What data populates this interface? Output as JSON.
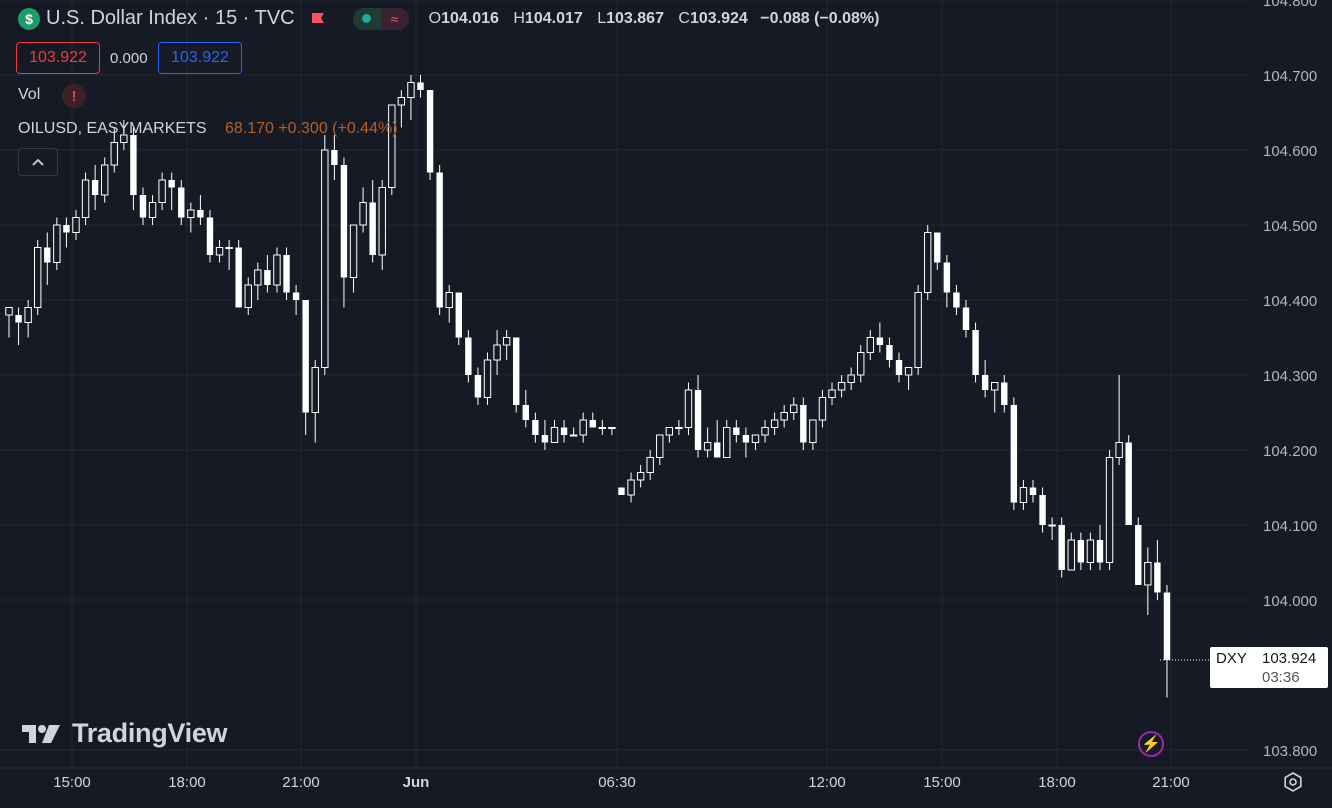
{
  "header": {
    "symbol_icon": "$",
    "title": "U.S. Dollar Index · 15 · TVC",
    "flag_icon": "red-flag-icon",
    "status_icon": "market-status-icon",
    "wave_icon": "≈",
    "ohlc": {
      "o_label": "O",
      "o": "104.016",
      "h_label": "H",
      "h": "104.017",
      "l_label": "L",
      "l": "103.867",
      "c_label": "C",
      "c": "103.924",
      "change": "−0.088 (−0.08%)"
    }
  },
  "quote": {
    "bid": "103.922",
    "spread": "0.000",
    "ask": "103.922"
  },
  "indicators": {
    "vol_label": "Vol",
    "vol_warning_icon": "!",
    "overlay_name": "OILUSD, EASYMARKETS",
    "overlay_value": "68.170 +0.300 (+0.44%)",
    "collapse_icon": "^"
  },
  "logo": {
    "text": "TradingView"
  },
  "price_label": {
    "symbol": "DXY",
    "price": "103.924",
    "countdown": "03:36"
  },
  "colors": {
    "background": "#161a25",
    "candle": "#ffffff",
    "grid": "#232733",
    "text": "#d1d4dc",
    "bid": "#f23645",
    "ask": "#2962ff",
    "overlay": "#b2602a"
  },
  "chart_data": {
    "type": "candlestick",
    "title": "U.S. Dollar Index · 15 · TVC",
    "ylim": [
      103.78,
      104.8
    ],
    "y_ticks": [
      "104.800",
      "104.700",
      "104.600",
      "104.500",
      "104.400",
      "104.300",
      "104.200",
      "104.100",
      "104.000",
      "103.800"
    ],
    "x_ticks": [
      "15:00",
      "18:00",
      "21:00",
      "Jun",
      "06:30",
      "12:00",
      "15:00",
      "18:00",
      "21:00"
    ],
    "grid": true,
    "gap_after_index": 74,
    "candles": [
      [
        104.38,
        104.39,
        104.35,
        104.39
      ],
      [
        104.38,
        104.39,
        104.34,
        104.37
      ],
      [
        104.37,
        104.4,
        104.35,
        104.39
      ],
      [
        104.39,
        104.48,
        104.38,
        104.47
      ],
      [
        104.47,
        104.49,
        104.42,
        104.45
      ],
      [
        104.45,
        104.51,
        104.44,
        104.5
      ],
      [
        104.5,
        104.51,
        104.47,
        104.49
      ],
      [
        104.49,
        104.52,
        104.48,
        104.51
      ],
      [
        104.51,
        104.57,
        104.5,
        104.56
      ],
      [
        104.56,
        104.58,
        104.52,
        104.54
      ],
      [
        104.54,
        104.59,
        104.53,
        104.58
      ],
      [
        104.58,
        104.63,
        104.57,
        104.61
      ],
      [
        104.61,
        104.64,
        104.6,
        104.62
      ],
      [
        104.62,
        104.63,
        104.52,
        104.54
      ],
      [
        104.54,
        104.55,
        104.5,
        104.51
      ],
      [
        104.51,
        104.54,
        104.5,
        104.53
      ],
      [
        104.53,
        104.57,
        104.52,
        104.56
      ],
      [
        104.56,
        104.57,
        104.52,
        104.55
      ],
      [
        104.55,
        104.56,
        104.5,
        104.51
      ],
      [
        104.51,
        104.53,
        104.49,
        104.52
      ],
      [
        104.52,
        104.54,
        104.5,
        104.51
      ],
      [
        104.51,
        104.52,
        104.45,
        104.46
      ],
      [
        104.46,
        104.48,
        104.45,
        104.47
      ],
      [
        104.47,
        104.48,
        104.44,
        104.47
      ],
      [
        104.47,
        104.48,
        104.39,
        104.39
      ],
      [
        104.39,
        104.43,
        104.38,
        104.42
      ],
      [
        104.42,
        104.45,
        104.4,
        104.44
      ],
      [
        104.44,
        104.46,
        104.41,
        104.42
      ],
      [
        104.42,
        104.47,
        104.41,
        104.46
      ],
      [
        104.46,
        104.47,
        104.4,
        104.41
      ],
      [
        104.41,
        104.42,
        104.38,
        104.4
      ],
      [
        104.4,
        104.4,
        104.22,
        104.25
      ],
      [
        104.25,
        104.32,
        104.21,
        104.31
      ],
      [
        104.31,
        104.62,
        104.3,
        104.6
      ],
      [
        104.6,
        104.62,
        104.56,
        104.58
      ],
      [
        104.58,
        104.59,
        104.39,
        104.43
      ],
      [
        104.43,
        104.5,
        104.41,
        104.5
      ],
      [
        104.5,
        104.55,
        104.49,
        104.53
      ],
      [
        104.53,
        104.56,
        104.45,
        104.46
      ],
      [
        104.46,
        104.56,
        104.44,
        104.55
      ],
      [
        104.55,
        104.65,
        104.54,
        104.66
      ],
      [
        104.66,
        104.68,
        104.63,
        104.67
      ],
      [
        104.67,
        104.7,
        104.64,
        104.69
      ],
      [
        104.69,
        104.7,
        104.67,
        104.68
      ],
      [
        104.68,
        104.68,
        104.56,
        104.57
      ],
      [
        104.57,
        104.58,
        104.38,
        104.39
      ],
      [
        104.39,
        104.42,
        104.37,
        104.41
      ],
      [
        104.41,
        104.41,
        104.34,
        104.35
      ],
      [
        104.35,
        104.36,
        104.29,
        104.3
      ],
      [
        104.3,
        104.31,
        104.26,
        104.27
      ],
      [
        104.27,
        104.33,
        104.26,
        104.32
      ],
      [
        104.32,
        104.36,
        104.3,
        104.34
      ],
      [
        104.34,
        104.36,
        104.32,
        104.35
      ],
      [
        104.35,
        104.35,
        104.25,
        104.26
      ],
      [
        104.26,
        104.28,
        104.23,
        104.24
      ],
      [
        104.24,
        104.25,
        104.21,
        104.22
      ],
      [
        104.22,
        104.24,
        104.2,
        104.21
      ],
      [
        104.21,
        104.24,
        104.21,
        104.23
      ],
      [
        104.23,
        104.24,
        104.21,
        104.22
      ],
      [
        104.22,
        104.23,
        104.22,
        104.22
      ],
      [
        104.22,
        104.25,
        104.21,
        104.24
      ],
      [
        104.24,
        104.25,
        104.23,
        104.23
      ],
      [
        104.23,
        104.24,
        104.22,
        104.23
      ],
      [
        104.23,
        104.23,
        104.22,
        104.23
      ],
      [
        104.15,
        104.15,
        104.14,
        104.14
      ],
      [
        104.14,
        104.17,
        104.13,
        104.16
      ],
      [
        104.16,
        104.18,
        104.15,
        104.17
      ],
      [
        104.17,
        104.2,
        104.16,
        104.19
      ],
      [
        104.19,
        104.22,
        104.18,
        104.22
      ],
      [
        104.22,
        104.23,
        104.21,
        104.23
      ],
      [
        104.23,
        104.24,
        104.22,
        104.23
      ],
      [
        104.23,
        104.29,
        104.22,
        104.28
      ],
      [
        104.28,
        104.3,
        104.19,
        104.2
      ],
      [
        104.2,
        104.23,
        104.19,
        104.21
      ],
      [
        104.21,
        104.24,
        104.19,
        104.19
      ],
      [
        104.19,
        104.24,
        104.19,
        104.23
      ],
      [
        104.23,
        104.24,
        104.21,
        104.22
      ],
      [
        104.22,
        104.23,
        104.19,
        104.21
      ],
      [
        104.21,
        104.22,
        104.2,
        104.22
      ],
      [
        104.22,
        104.24,
        104.21,
        104.23
      ],
      [
        104.23,
        104.25,
        104.22,
        104.24
      ],
      [
        104.24,
        104.26,
        104.23,
        104.25
      ],
      [
        104.25,
        104.27,
        104.24,
        104.26
      ],
      [
        104.26,
        104.27,
        104.2,
        104.21
      ],
      [
        104.21,
        104.24,
        104.2,
        104.24
      ],
      [
        104.24,
        104.28,
        104.23,
        104.27
      ],
      [
        104.27,
        104.29,
        104.26,
        104.28
      ],
      [
        104.28,
        104.3,
        104.27,
        104.29
      ],
      [
        104.29,
        104.31,
        104.28,
        104.3
      ],
      [
        104.3,
        104.34,
        104.29,
        104.33
      ],
      [
        104.33,
        104.36,
        104.32,
        104.35
      ],
      [
        104.35,
        104.37,
        104.33,
        104.34
      ],
      [
        104.34,
        104.35,
        104.31,
        104.32
      ],
      [
        104.32,
        104.33,
        104.29,
        104.3
      ],
      [
        104.3,
        104.31,
        104.28,
        104.31
      ],
      [
        104.31,
        104.42,
        104.3,
        104.41
      ],
      [
        104.41,
        104.5,
        104.4,
        104.49
      ],
      [
        104.49,
        104.49,
        104.44,
        104.45
      ],
      [
        104.45,
        104.46,
        104.39,
        104.41
      ],
      [
        104.41,
        104.42,
        104.38,
        104.39
      ],
      [
        104.39,
        104.4,
        104.35,
        104.36
      ],
      [
        104.36,
        104.37,
        104.29,
        104.3
      ],
      [
        104.3,
        104.32,
        104.27,
        104.28
      ],
      [
        104.28,
        104.29,
        104.25,
        104.29
      ],
      [
        104.29,
        104.3,
        104.25,
        104.26
      ],
      [
        104.26,
        104.27,
        104.12,
        104.13
      ],
      [
        104.13,
        104.16,
        104.12,
        104.15
      ],
      [
        104.15,
        104.16,
        104.13,
        104.14
      ],
      [
        104.14,
        104.15,
        104.09,
        104.1
      ],
      [
        104.1,
        104.11,
        104.08,
        104.1
      ],
      [
        104.1,
        104.11,
        104.03,
        104.04
      ],
      [
        104.04,
        104.09,
        104.04,
        104.08
      ],
      [
        104.08,
        104.09,
        104.04,
        104.05
      ],
      [
        104.05,
        104.09,
        104.04,
        104.08
      ],
      [
        104.08,
        104.1,
        104.04,
        104.05
      ],
      [
        104.05,
        104.2,
        104.04,
        104.19
      ],
      [
        104.19,
        104.3,
        104.18,
        104.21
      ],
      [
        104.21,
        104.22,
        104.1,
        104.1
      ],
      [
        104.1,
        104.11,
        104.02,
        104.02
      ],
      [
        104.02,
        104.07,
        103.98,
        104.05
      ],
      [
        104.05,
        104.08,
        104.0,
        104.01
      ],
      [
        104.01,
        104.02,
        103.87,
        103.92
      ]
    ]
  }
}
